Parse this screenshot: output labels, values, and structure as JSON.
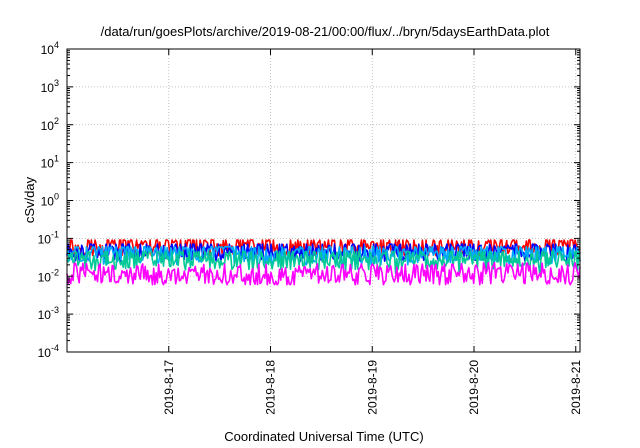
{
  "chart_data": {
    "type": "line",
    "title": "/data/run/goesPlots/archive/2019-08-21/00:00/flux/../bryn/5daysEarthData.plot",
    "xlabel": "Coordinated Universal Time (UTC)",
    "ylabel": "cSv/day",
    "yscale": "log",
    "ylim": [
      0.0001,
      10000
    ],
    "xlim": [
      "2019-08-16",
      "2019-08-21"
    ],
    "grid": true,
    "x_ticks": [
      "2019-8-17",
      "2019-8-18",
      "2019-8-19",
      "2019-8-20",
      "2019-8-21"
    ],
    "y_ticks": [
      {
        "base": "10",
        "exp": "-4",
        "value": 0.0001
      },
      {
        "base": "10",
        "exp": "-3",
        "value": 0.001
      },
      {
        "base": "10",
        "exp": "-2",
        "value": 0.01
      },
      {
        "base": "10",
        "exp": "-1",
        "value": 0.1
      },
      {
        "base": "10",
        "exp": "0",
        "value": 1
      },
      {
        "base": "10",
        "exp": "1",
        "value": 10
      },
      {
        "base": "10",
        "exp": "2",
        "value": 100
      },
      {
        "base": "10",
        "exp": "3",
        "value": 1000
      },
      {
        "base": "10",
        "exp": "4",
        "value": 10000
      }
    ],
    "series": [
      {
        "color": "#ff0000",
        "typical_range": [
          0.035,
          0.09
        ],
        "approx_points": [
          [
            "2019-08-16",
            0.06
          ],
          [
            "2019-08-17",
            0.065
          ],
          [
            "2019-08-18",
            0.06
          ],
          [
            "2019-08-19",
            0.06
          ],
          [
            "2019-08-20",
            0.065
          ],
          [
            "2019-08-21",
            0.07
          ]
        ]
      },
      {
        "color": "#0000ff",
        "typical_range": [
          0.025,
          0.07
        ],
        "approx_points": [
          [
            "2019-08-16",
            0.045
          ],
          [
            "2019-08-17",
            0.05
          ],
          [
            "2019-08-18",
            0.045
          ],
          [
            "2019-08-19",
            0.045
          ],
          [
            "2019-08-20",
            0.05
          ],
          [
            "2019-08-21",
            0.05
          ]
        ]
      },
      {
        "color": "#00aaff",
        "typical_range": [
          0.02,
          0.06
        ],
        "approx_points": [
          [
            "2019-08-16",
            0.04
          ],
          [
            "2019-08-17",
            0.04
          ],
          [
            "2019-08-18",
            0.04
          ],
          [
            "2019-08-19",
            0.035
          ],
          [
            "2019-08-20",
            0.04
          ],
          [
            "2019-08-21",
            0.04
          ]
        ]
      },
      {
        "color": "#00c896",
        "typical_range": [
          0.012,
          0.045
        ],
        "approx_points": [
          [
            "2019-08-16",
            0.03
          ],
          [
            "2019-08-17",
            0.03
          ],
          [
            "2019-08-18",
            0.028
          ],
          [
            "2019-08-19",
            0.028
          ],
          [
            "2019-08-20",
            0.03
          ],
          [
            "2019-08-21",
            0.03
          ]
        ]
      },
      {
        "color": "#ff00ff",
        "typical_range": [
          0.006,
          0.04
        ],
        "approx_points": [
          [
            "2019-08-16",
            0.012
          ],
          [
            "2019-08-17",
            0.012
          ],
          [
            "2019-08-18",
            0.011
          ],
          [
            "2019-08-19",
            0.011
          ],
          [
            "2019-08-20",
            0.012
          ],
          [
            "2019-08-21",
            0.012
          ]
        ]
      }
    ]
  }
}
